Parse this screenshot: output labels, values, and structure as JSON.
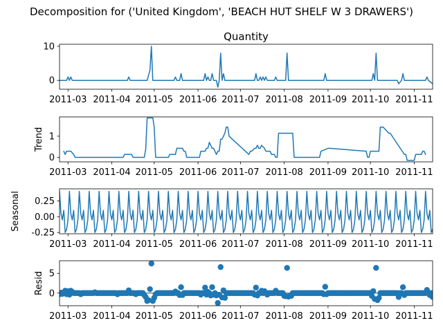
{
  "figure": {
    "suptitle": "Decomposition for ('United Kingdom', 'BEACH HUT SHELF W 3 DRAWERS')",
    "line_color": "#1f77b4"
  },
  "chart_data": [
    {
      "type": "line",
      "title": "Quantity",
      "ylabel": "",
      "xlim": [
        "2011-02-23",
        "2011-11-14"
      ],
      "ylim": [
        -2.6,
        10.6
      ],
      "yticks": [
        0,
        10
      ],
      "ytick_labels": [
        "0",
        "10"
      ],
      "xticks": [
        "2011-03-01",
        "2011-04-01",
        "2011-05-01",
        "2011-06-01",
        "2011-07-01",
        "2011-08-01",
        "2011-09-01",
        "2011-10-01",
        "2011-11-01"
      ],
      "xtick_labels": [
        "2011-03",
        "2011-04",
        "2011-05",
        "2011-06",
        "2011-07",
        "2011-08",
        "2011-09",
        "2011-10",
        "2011-11"
      ],
      "x": [
        "2011-02-23",
        "2011-02-28",
        "2011-03-01",
        "2011-03-02",
        "2011-03-03",
        "2011-03-04",
        "2011-04-12",
        "2011-04-13",
        "2011-04-14",
        "2011-04-26",
        "2011-04-28",
        "2011-04-29",
        "2011-04-30",
        "2011-05-15",
        "2011-05-16",
        "2011-05-17",
        "2011-05-19",
        "2011-05-20",
        "2011-05-21",
        "2011-06-05",
        "2011-06-06",
        "2011-06-07",
        "2011-06-08",
        "2011-06-09",
        "2011-06-10",
        "2011-06-11",
        "2011-06-12",
        "2011-06-14",
        "2011-06-15",
        "2011-06-16",
        "2011-06-17",
        "2011-06-18",
        "2011-06-19",
        "2011-06-20",
        "2011-06-21",
        "2011-06-22",
        "2011-07-11",
        "2011-07-12",
        "2011-07-13",
        "2011-07-14",
        "2011-07-15",
        "2011-07-16",
        "2011-07-17",
        "2011-07-18",
        "2011-07-19",
        "2011-07-20",
        "2011-07-25",
        "2011-07-26",
        "2011-07-27",
        "2011-08-02",
        "2011-08-03",
        "2011-08-04",
        "2011-08-29",
        "2011-08-30",
        "2011-08-31",
        "2011-10-02",
        "2011-10-03",
        "2011-10-04",
        "2011-10-05",
        "2011-10-06",
        "2011-10-20",
        "2011-10-21",
        "2011-10-23",
        "2011-10-24",
        "2011-10-25",
        "2011-11-09",
        "2011-11-10",
        "2011-11-11",
        "2011-11-14"
      ],
      "values": [
        0,
        0,
        1,
        0,
        1,
        0,
        0,
        1,
        0,
        0,
        3,
        10,
        0,
        0,
        1,
        0,
        0,
        2,
        0,
        0,
        2,
        0,
        1,
        0,
        0,
        2,
        0,
        0,
        -2,
        0,
        8,
        0,
        2,
        0,
        0,
        0,
        0,
        2,
        0,
        0,
        1,
        0,
        1,
        0,
        1,
        0,
        0,
        1,
        0,
        0,
        8,
        0,
        0,
        2,
        0,
        0,
        2,
        0,
        8,
        0,
        0,
        -1,
        0,
        2,
        0,
        0,
        1,
        0,
        -1
      ]
    },
    {
      "type": "line",
      "title": "",
      "ylabel": "Trend",
      "xlim": [
        "2011-02-23",
        "2011-11-14"
      ],
      "ylim": [
        -0.21,
        1.91
      ],
      "yticks": [
        0,
        1
      ],
      "ytick_labels": [
        "0",
        "1"
      ],
      "xticks": [
        "2011-03-01",
        "2011-04-01",
        "2011-05-01",
        "2011-06-01",
        "2011-07-01",
        "2011-08-01",
        "2011-09-01",
        "2011-10-01",
        "2011-11-01"
      ],
      "xtick_labels": [
        "2011-03",
        "2011-04",
        "2011-05",
        "2011-06",
        "2011-07",
        "2011-08",
        "2011-09",
        "2011-10",
        "2011-11"
      ],
      "x": [
        "2011-02-26",
        "2011-02-27",
        "2011-02-28",
        "2011-03-03",
        "2011-03-05",
        "2011-03-06",
        "2011-04-09",
        "2011-04-10",
        "2011-04-15",
        "2011-04-16",
        "2011-04-24",
        "2011-04-25",
        "2011-04-26",
        "2011-04-30",
        "2011-05-01",
        "2011-05-02",
        "2011-05-11",
        "2011-05-12",
        "2011-05-16",
        "2011-05-17",
        "2011-05-21",
        "2011-05-22",
        "2011-05-23",
        "2011-05-24",
        "2011-06-02",
        "2011-06-03",
        "2011-06-06",
        "2011-06-07",
        "2011-06-08",
        "2011-06-09",
        "2011-06-10",
        "2011-06-11",
        "2011-06-12",
        "2011-06-13",
        "2011-06-14",
        "2011-06-15",
        "2011-06-16",
        "2011-06-17",
        "2011-06-18",
        "2011-06-20",
        "2011-06-21",
        "2011-06-22",
        "2011-06-23",
        "2011-07-07",
        "2011-07-08",
        "2011-07-09",
        "2011-07-11",
        "2011-07-12",
        "2011-07-13",
        "2011-07-14",
        "2011-07-15",
        "2011-07-16",
        "2011-07-18",
        "2011-07-19",
        "2011-07-20",
        "2011-07-22",
        "2011-07-23",
        "2011-07-24",
        "2011-07-25",
        "2011-07-26",
        "2011-07-27",
        "2011-07-28",
        "2011-07-29",
        "2011-07-31",
        "2011-08-07",
        "2011-08-08",
        "2011-08-26",
        "2011-08-27",
        "2011-09-01",
        "2011-09-02",
        "2011-09-28",
        "2011-09-29",
        "2011-09-30",
        "2011-10-01",
        "2011-10-07",
        "2011-10-08",
        "2011-10-10",
        "2011-10-14",
        "2011-10-15",
        "2011-10-25",
        "2011-10-26",
        "2011-10-27",
        "2011-11-01",
        "2011-11-02",
        "2011-11-06",
        "2011-11-07",
        "2011-11-08",
        "2011-11-09"
      ],
      "values": [
        0.29,
        0.14,
        0.29,
        0.29,
        0.14,
        0,
        0,
        0.14,
        0.14,
        0,
        0,
        0.4,
        1.86,
        1.86,
        1.43,
        0,
        0,
        0.14,
        0.14,
        0.43,
        0.43,
        0.29,
        0.29,
        0,
        0,
        0.29,
        0.29,
        0.43,
        0.43,
        0.71,
        0.57,
        0.43,
        0.43,
        0.29,
        0.14,
        0.29,
        0.29,
        0.86,
        0.86,
        1.14,
        1.43,
        1.43,
        1.0,
        0.14,
        0.29,
        0.29,
        0.43,
        0.43,
        0.57,
        0.43,
        0.43,
        0.57,
        0.43,
        0.29,
        0.29,
        0.29,
        0.14,
        0.14,
        0.14,
        0,
        0,
        1.14,
        1.14,
        1.14,
        1.14,
        0,
        0,
        0.29,
        0.43,
        0.43,
        0.29,
        0,
        0,
        0.29,
        0.29,
        1.43,
        1.43,
        1.14,
        1.14,
        0.14,
        0.14,
        -0.14,
        -0.14,
        0.14,
        0.14,
        0.29,
        0.29,
        0.14
      ]
    },
    {
      "type": "line",
      "title": "",
      "ylabel": "Seasonal",
      "xlim": [
        "2011-02-23",
        "2011-11-14"
      ],
      "ylim": [
        -0.27,
        0.44
      ],
      "yticks": [
        -0.25,
        0.0,
        0.25
      ],
      "ytick_labels": [
        "-0.25",
        "0.00",
        "0.25"
      ],
      "xticks": [
        "2011-03-01",
        "2011-04-01",
        "2011-05-01",
        "2011-06-01",
        "2011-07-01",
        "2011-08-01",
        "2011-09-01",
        "2011-10-01",
        "2011-11-01"
      ],
      "xtick_labels": [
        "2011-03",
        "2011-04",
        "2011-05",
        "2011-06",
        "2011-07",
        "2011-08",
        "2011-09",
        "2011-10",
        "2011-11"
      ],
      "start": "2011-02-23",
      "end": "2011-11-14",
      "weekly_pattern": [
        0.4,
        0.05,
        -0.05,
        0.1,
        -0.25,
        -0.2,
        -0.05
      ]
    },
    {
      "type": "scatter",
      "title": "",
      "ylabel": "Resid",
      "xlim": [
        "2011-02-23",
        "2011-11-14"
      ],
      "ylim": [
        -3.2,
        8.2
      ],
      "yticks": [
        0,
        5
      ],
      "ytick_labels": [
        "0",
        "5"
      ],
      "xticks": [
        "2011-03-01",
        "2011-04-01",
        "2011-05-01",
        "2011-06-01",
        "2011-07-01",
        "2011-08-01",
        "2011-09-01",
        "2011-10-01",
        "2011-11-01"
      ],
      "xtick_labels": [
        "2011-03",
        "2011-04",
        "2011-05",
        "2011-06",
        "2011-07",
        "2011-08",
        "2011-09",
        "2011-10",
        "2011-11"
      ],
      "start": "2011-02-23",
      "end": "2011-11-14",
      "default_value": 0,
      "points": {
        "2011-02-23": -0.3,
        "2011-02-24": 0.1,
        "2011-02-25": -0.2,
        "2011-02-26": 0.2,
        "2011-02-27": 0.6,
        "2011-02-28": -0.3,
        "2011-03-01": 0.5,
        "2011-03-02": -0.4,
        "2011-03-03": 0.6,
        "2011-03-04": 0.3,
        "2011-03-10": -0.3,
        "2011-03-20": 0.2,
        "2011-04-05": -0.3,
        "2011-04-13": 0.7,
        "2011-04-18": -0.3,
        "2011-04-24": -0.5,
        "2011-04-25": -1.0,
        "2011-04-26": -2.0,
        "2011-04-27": -1.8,
        "2011-04-28": 1.0,
        "2011-04-29": 7.5,
        "2011-04-30": -2.0,
        "2011-05-01": -1.2,
        "2011-05-02": -0.3,
        "2011-05-16": 0.4,
        "2011-05-19": -0.5,
        "2011-05-20": 1.5,
        "2011-05-21": -0.5,
        "2011-06-03": -0.4,
        "2011-06-06": 1.4,
        "2011-06-07": -0.4,
        "2011-06-08": 0.3,
        "2011-06-10": -0.6,
        "2011-06-11": 1.5,
        "2011-06-12": -0.4,
        "2011-06-14": -0.6,
        "2011-06-15": -2.5,
        "2011-06-16": -0.4,
        "2011-06-17": 6.6,
        "2011-06-18": -1.1,
        "2011-06-19": 0.7,
        "2011-06-20": -1.2,
        "2011-07-11": -0.4,
        "2011-07-12": 1.4,
        "2011-07-13": -0.6,
        "2011-07-16": 0.6,
        "2011-07-18": 0.5,
        "2011-07-20": -0.4,
        "2011-07-26": 0.6,
        "2011-08-01": -0.7,
        "2011-08-02": -0.8,
        "2011-08-03": 6.4,
        "2011-08-04": -0.9,
        "2011-08-05": -0.6,
        "2011-08-06": -0.7,
        "2011-08-29": -0.3,
        "2011-08-30": 1.6,
        "2011-08-31": -0.3,
        "2011-10-02": -0.7,
        "2011-10-03": 0.5,
        "2011-10-04": -1.5,
        "2011-10-05": 6.4,
        "2011-10-06": -1.8,
        "2011-10-07": -1.2,
        "2011-10-21": -1.0,
        "2011-10-24": 1.5,
        "2011-10-25": -0.5,
        "2011-11-10": 0.8,
        "2011-11-12": -0.5,
        "2011-11-14": -1.0
      }
    }
  ]
}
